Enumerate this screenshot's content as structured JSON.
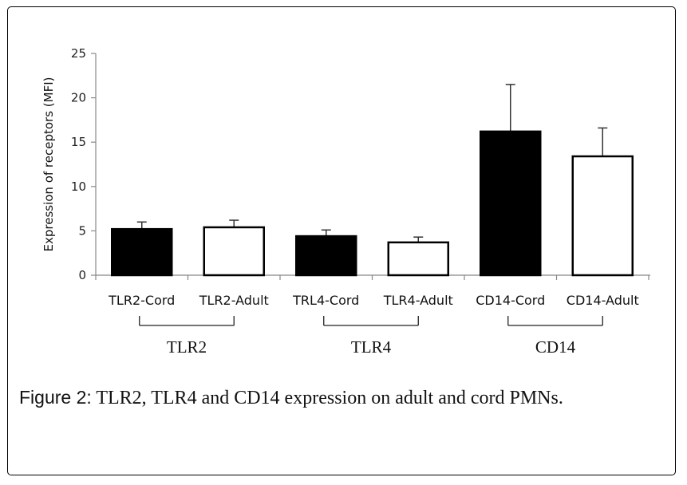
{
  "chart_data": {
    "type": "bar",
    "title": "",
    "xlabel": "",
    "ylabel": "Expression of receptors (MFI)",
    "ylim": [
      0,
      25
    ],
    "yticks": [
      "0",
      "5",
      "10",
      "15",
      "20",
      "25"
    ],
    "grid": false,
    "categories": [
      "TLR2-Cord",
      "TLR2-Adult",
      "TRL4-Cord",
      "TLR4-Adult",
      "CD14-Cord",
      "CD14-Adult"
    ],
    "values": [
      5.2,
      5.4,
      4.4,
      3.7,
      16.2,
      13.4
    ],
    "errors": [
      0.8,
      0.8,
      0.7,
      0.6,
      5.3,
      3.2
    ],
    "colors": [
      "#000000",
      "#ffffff",
      "#000000",
      "#ffffff",
      "#000000",
      "#ffffff"
    ],
    "groups": [
      {
        "label": "TLR2",
        "members": [
          0,
          1
        ]
      },
      {
        "label": "TLR4",
        "members": [
          2,
          3
        ]
      },
      {
        "label": "CD14",
        "members": [
          4,
          5
        ]
      }
    ]
  },
  "caption": {
    "label": "Figure 2:",
    "text": "TLR2, TLR4 and CD14 expression on adult and cord PMNs."
  }
}
